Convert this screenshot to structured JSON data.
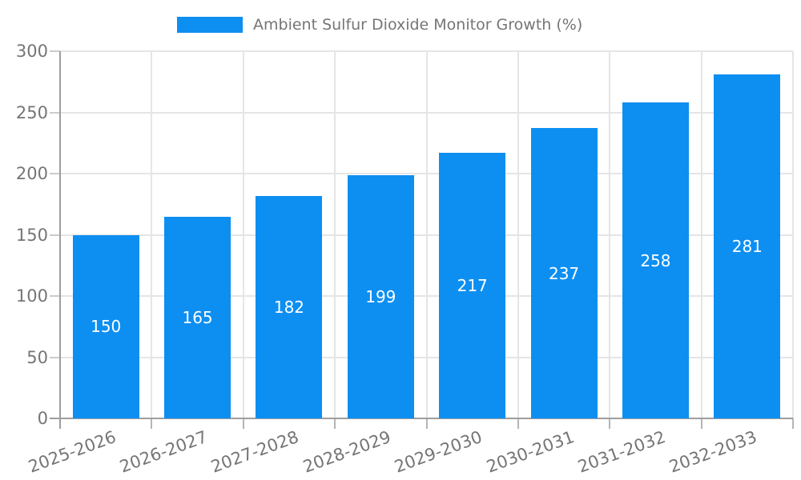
{
  "chart_data": {
    "type": "bar",
    "title": "Ambient Sulfur Dioxide Monitor Growth (%)",
    "categories": [
      "2025-2026",
      "2026-2027",
      "2027-2028",
      "2028-2029",
      "2029-2030",
      "2030-2031",
      "2031-2032",
      "2032-2033"
    ],
    "values": [
      150,
      165,
      182,
      199,
      217,
      237,
      258,
      281
    ],
    "value_labels": [
      "150",
      "165",
      "182",
      "199",
      "217",
      "237",
      "258",
      "281"
    ],
    "xlabel": "",
    "ylabel": "",
    "ylim": [
      0,
      300
    ],
    "yticks": [
      0,
      50,
      100,
      150,
      200,
      250,
      300
    ],
    "ytick_labels": [
      "0",
      "50",
      "100",
      "150",
      "200",
      "250",
      "300"
    ],
    "grid": true,
    "legend_position": "top-center",
    "colors": {
      "bar": "#0d8ff2",
      "value_label": "#ffffff",
      "axis_text": "#757575",
      "grid": "#e5e5e5",
      "axis_line": "#9e9e9e"
    }
  }
}
